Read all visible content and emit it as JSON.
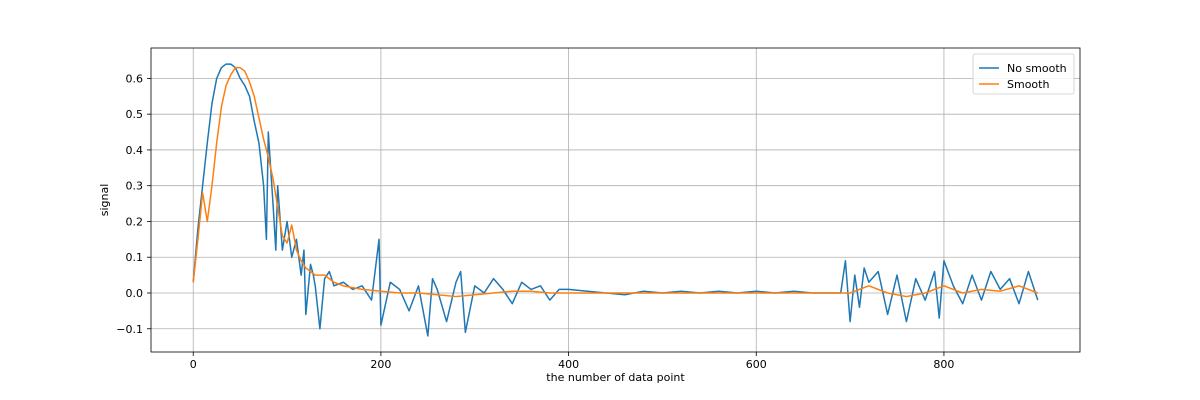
{
  "chart_data": {
    "type": "line",
    "title": "",
    "xlabel": "the number of data point",
    "ylabel": "signal",
    "xlim": [
      -45,
      945
    ],
    "ylim": [
      -0.165,
      0.685
    ],
    "xticks": [
      0,
      200,
      400,
      600,
      800
    ],
    "yticks": [
      -0.1,
      0.0,
      0.1,
      0.2,
      0.3,
      0.4,
      0.5,
      0.6
    ],
    "xtick_labels": [
      "0",
      "200",
      "400",
      "600",
      "800"
    ],
    "ytick_labels": [
      "−0.1",
      "0.0",
      "0.1",
      "0.2",
      "0.3",
      "0.4",
      "0.5",
      "0.6"
    ],
    "grid": true,
    "legend_position": "top-right",
    "series": [
      {
        "name": "No smooth",
        "color": "#1f77b4",
        "x": [
          0,
          5,
          10,
          15,
          20,
          25,
          30,
          35,
          40,
          45,
          50,
          55,
          60,
          65,
          70,
          75,
          78,
          80,
          85,
          88,
          90,
          95,
          100,
          105,
          110,
          115,
          118,
          120,
          125,
          128,
          130,
          135,
          140,
          145,
          150,
          160,
          170,
          180,
          190,
          198,
          200,
          210,
          220,
          230,
          240,
          250,
          255,
          260,
          270,
          280,
          285,
          290,
          300,
          310,
          320,
          330,
          340,
          350,
          360,
          370,
          380,
          390,
          400,
          420,
          440,
          460,
          480,
          500,
          520,
          540,
          560,
          580,
          600,
          620,
          640,
          660,
          680,
          690,
          695,
          700,
          705,
          710,
          715,
          720,
          730,
          740,
          750,
          760,
          770,
          780,
          790,
          795,
          800,
          810,
          820,
          830,
          840,
          850,
          860,
          870,
          880,
          890,
          900
        ],
        "values": [
          0.03,
          0.18,
          0.3,
          0.42,
          0.53,
          0.6,
          0.63,
          0.64,
          0.64,
          0.63,
          0.6,
          0.58,
          0.55,
          0.48,
          0.42,
          0.3,
          0.15,
          0.45,
          0.25,
          0.12,
          0.3,
          0.12,
          0.2,
          0.1,
          0.15,
          0.05,
          0.12,
          -0.06,
          0.08,
          0.05,
          0.02,
          -0.1,
          0.04,
          0.06,
          0.02,
          0.03,
          0.01,
          0.02,
          -0.02,
          0.15,
          -0.09,
          0.03,
          0.01,
          -0.05,
          0.02,
          -0.12,
          0.04,
          0.01,
          -0.08,
          0.03,
          0.06,
          -0.11,
          0.02,
          0.0,
          0.04,
          0.01,
          -0.03,
          0.03,
          0.01,
          0.02,
          -0.02,
          0.01,
          0.01,
          0.005,
          0.0,
          -0.005,
          0.005,
          0.0,
          0.005,
          0.0,
          0.005,
          0.0,
          0.005,
          0.0,
          0.005,
          0.0,
          0.0,
          0.0,
          0.09,
          -0.08,
          0.05,
          -0.04,
          0.07,
          0.03,
          0.06,
          -0.06,
          0.05,
          -0.08,
          0.04,
          -0.02,
          0.06,
          -0.07,
          0.09,
          0.02,
          -0.03,
          0.05,
          -0.02,
          0.06,
          0.01,
          0.04,
          -0.03,
          0.06,
          -0.02
        ],
        "note_precision": "approximate"
      },
      {
        "name": "Smooth",
        "color": "#ff7f0e",
        "x": [
          0,
          5,
          10,
          15,
          20,
          25,
          30,
          35,
          40,
          45,
          50,
          55,
          60,
          65,
          70,
          75,
          80,
          85,
          90,
          95,
          100,
          105,
          110,
          115,
          120,
          130,
          140,
          150,
          160,
          170,
          180,
          200,
          220,
          240,
          260,
          280,
          300,
          320,
          340,
          360,
          380,
          400,
          450,
          500,
          550,
          600,
          650,
          680,
          700,
          720,
          740,
          760,
          780,
          800,
          820,
          840,
          860,
          880,
          900
        ],
        "values": [
          0.03,
          0.15,
          0.28,
          0.2,
          0.3,
          0.42,
          0.52,
          0.58,
          0.61,
          0.63,
          0.63,
          0.62,
          0.59,
          0.55,
          0.49,
          0.43,
          0.38,
          0.32,
          0.24,
          0.16,
          0.14,
          0.19,
          0.12,
          0.09,
          0.07,
          0.05,
          0.05,
          0.03,
          0.02,
          0.015,
          0.01,
          0.005,
          0.0,
          0.0,
          -0.005,
          -0.01,
          -0.005,
          0.0,
          0.005,
          0.005,
          0.0,
          0.0,
          0.0,
          0.0,
          0.0,
          0.0,
          0.0,
          0.0,
          0.0,
          0.02,
          0.0,
          -0.01,
          0.0,
          0.02,
          0.0,
          0.01,
          0.005,
          0.02,
          0.0
        ]
      }
    ]
  }
}
